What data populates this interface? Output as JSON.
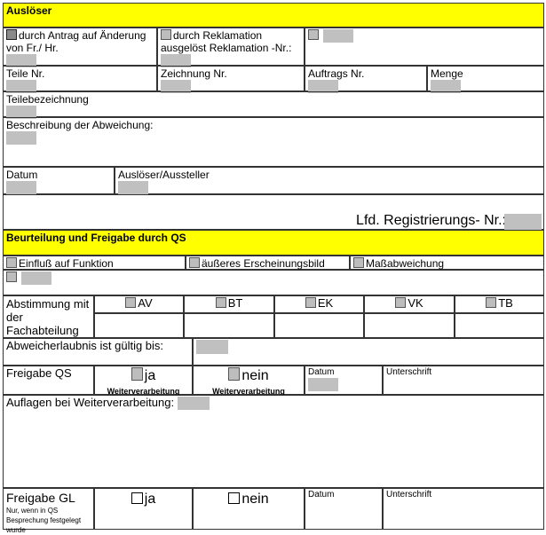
{
  "section1": {
    "title": "Auslöser",
    "opt_antrag": "durch Antrag auf Änderung von Fr./ Hr.",
    "opt_reklamation": "durch Reklamation ausgelöst Reklamation -Nr.:",
    "teile_nr": "Teile Nr.",
    "zeichnung_nr": "Zeichnung Nr.",
    "auftrags_nr": "Auftrags Nr.",
    "menge": "Menge",
    "teilebezeichnung": "Teilebezeichnung",
    "beschreibung": "Beschreibung der Abweichung:",
    "datum": "Datum",
    "ausloeser": "Auslöser/Aussteller",
    "lfd_nr": "Lfd. Registrierungs- Nr.:"
  },
  "section2": {
    "title": "Beurteilung und Freigabe durch QS",
    "einfluss": "Einfluß auf Funktion",
    "aeusseres": "äußeres Erscheinungsbild",
    "mass": "Maßabweichung",
    "abstimmung": "Abstimmung mit der Fachabteilung",
    "departments": [
      "AV",
      "BT",
      "EK",
      "VK",
      "TB"
    ],
    "gueltig": "Abweicherlaubnis ist gültig bis:",
    "freigabe_qs": "Freigabe QS",
    "ja": "ja",
    "nein": "nein",
    "weiter": "Weiterverarbeitung",
    "datum": "Datum",
    "unterschrift": "Unterschrift",
    "auflagen": "Auflagen bei Weiterverarbeitung:",
    "freigabe_gl": "Freigabe GL",
    "gl_note": "Nur, wenn in QS Besprechung festgelegt wurde"
  }
}
